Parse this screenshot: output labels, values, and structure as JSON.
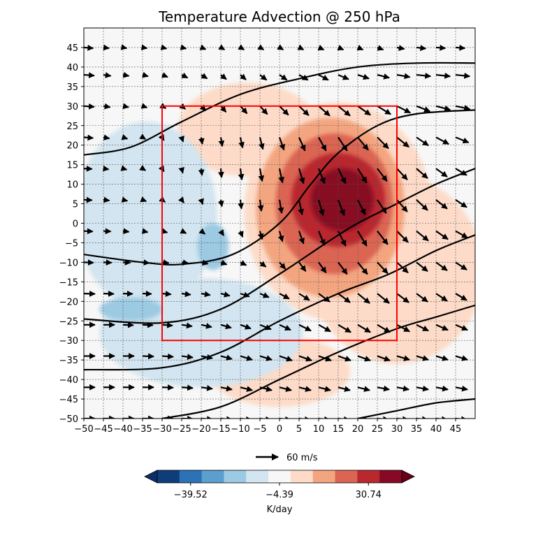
{
  "chart_data": {
    "type": "heatmap",
    "title": "Temperature Advection @ 250 hPa",
    "xlabel": "",
    "ylabel": "",
    "xlim": [
      -50,
      50
    ],
    "ylim": [
      -50,
      50
    ],
    "x_ticks": [
      -50,
      -45,
      -40,
      -35,
      -30,
      -25,
      -20,
      -15,
      -10,
      -5,
      0,
      5,
      10,
      15,
      20,
      25,
      30,
      35,
      40,
      45
    ],
    "y_ticks": [
      -50,
      -45,
      -40,
      -35,
      -30,
      -25,
      -20,
      -15,
      -10,
      -5,
      0,
      5,
      10,
      15,
      20,
      25,
      30,
      35,
      40,
      45
    ],
    "grid": true,
    "colorbar": {
      "label": "K/day",
      "tick_values": [
        "-39.52",
        "-4.39",
        "30.74"
      ],
      "extend": "both",
      "colors": [
        "#0e3d7a",
        "#2c72b6",
        "#5a9fcd",
        "#9ccae3",
        "#d2e5f0",
        "#f7f7f7",
        "#fddbc8",
        "#f3a580",
        "#db6553",
        "#b9282f",
        "#860a23"
      ]
    },
    "highlight_box": {
      "x": [
        -30,
        30
      ],
      "y": [
        -30,
        30
      ],
      "color": "#ff0000"
    },
    "vector_key": {
      "label": "60 m/s",
      "value": 60
    },
    "advection_blobs": [
      {
        "x": 15,
        "y": 3,
        "rx": 24,
        "ry": 28,
        "level": 1
      },
      {
        "x": -8,
        "y": 24,
        "rx": 18,
        "ry": 12,
        "level": 1
      },
      {
        "x": 30,
        "y": -12,
        "rx": 22,
        "ry": 24,
        "level": 1
      },
      {
        "x": 0,
        "y": -38,
        "rx": 18,
        "ry": 9,
        "level": 1
      },
      {
        "x": 13,
        "y": 4,
        "rx": 19,
        "ry": 23,
        "level": 2
      },
      {
        "x": 14,
        "y": 5,
        "rx": 15,
        "ry": 18,
        "level": 3
      },
      {
        "x": 15,
        "y": 6,
        "rx": 12,
        "ry": 12,
        "level": 4
      },
      {
        "x": 16,
        "y": 6,
        "rx": 8,
        "ry": 8,
        "level": 5
      },
      {
        "x": -34,
        "y": 2,
        "rx": 18,
        "ry": 24,
        "level": -1
      },
      {
        "x": -20,
        "y": -28,
        "rx": 26,
        "ry": 14,
        "level": -1
      },
      {
        "x": -38,
        "y": -22,
        "rx": 8,
        "ry": 3,
        "level": -2
      },
      {
        "x": -17,
        "y": -6,
        "rx": 4,
        "ry": 6,
        "level": -2
      }
    ],
    "contours": [
      [
        [
          -50,
          17.5
        ],
        [
          -38,
          19.5
        ],
        [
          -25,
          26
        ],
        [
          -10,
          33
        ],
        [
          5,
          37
        ],
        [
          20,
          40
        ],
        [
          35,
          41
        ],
        [
          50,
          41
        ]
      ],
      [
        [
          -50,
          -8
        ],
        [
          -35,
          -10
        ],
        [
          -25,
          -10.5
        ],
        [
          -12,
          -8
        ],
        [
          0,
          0
        ],
        [
          8,
          10
        ],
        [
          15,
          18
        ],
        [
          25,
          25
        ],
        [
          35,
          28
        ],
        [
          50,
          29
        ]
      ],
      [
        [
          -50,
          -24.5
        ],
        [
          -30,
          -25.5
        ],
        [
          -15,
          -22
        ],
        [
          0,
          -13
        ],
        [
          12,
          -5
        ],
        [
          20,
          0
        ],
        [
          30,
          5
        ],
        [
          40,
          10
        ],
        [
          50,
          14
        ]
      ],
      [
        [
          -50,
          -37.5
        ],
        [
          -30,
          -37
        ],
        [
          -15,
          -33
        ],
        [
          0,
          -25
        ],
        [
          15,
          -18
        ],
        [
          28,
          -13
        ],
        [
          40,
          -7
        ],
        [
          50,
          -3
        ]
      ],
      [
        [
          -30,
          -50
        ],
        [
          -15,
          -47
        ],
        [
          0,
          -40
        ],
        [
          15,
          -33
        ],
        [
          30,
          -27
        ],
        [
          40,
          -24
        ],
        [
          50,
          -21
        ]
      ],
      [
        [
          20,
          -50
        ],
        [
          30,
          -48
        ],
        [
          40,
          -46
        ],
        [
          50,
          -45
        ]
      ]
    ],
    "wind_rows": [
      {
        "y": 45,
        "u": [
          25,
          15,
          10,
          12,
          12,
          12,
          12,
          10,
          10,
          10,
          10,
          12,
          14,
          14,
          14,
          16,
          20,
          25,
          25,
          25
        ],
        "v": [
          -2,
          -2,
          -2,
          -2,
          -3,
          -3,
          -5,
          -6,
          -6,
          -6,
          -6,
          -6,
          -6,
          -6,
          -6,
          -6,
          -4,
          -3,
          -2,
          -2
        ]
      },
      {
        "y": 38,
        "u": [
          28,
          20,
          16,
          15,
          15,
          16,
          16,
          15,
          15,
          18,
          20,
          24,
          26,
          28,
          30,
          32,
          35,
          38,
          38,
          38
        ],
        "v": [
          -2,
          -3,
          -3,
          -4,
          -6,
          -8,
          -10,
          -12,
          -13,
          -14,
          -14,
          -14,
          -14,
          -12,
          -10,
          -8,
          -6,
          -4,
          -4,
          -4
        ]
      },
      {
        "y": 30,
        "u": [
          28,
          18,
          15,
          12,
          10,
          10,
          12,
          14,
          18,
          20,
          24,
          26,
          30,
          32,
          34,
          36,
          36,
          36,
          38,
          38
        ],
        "v": [
          -2,
          -3,
          -3,
          -4,
          -6,
          -8,
          -12,
          -16,
          -20,
          -22,
          -24,
          -25,
          -26,
          -26,
          -24,
          -22,
          -18,
          -14,
          -10,
          -8
        ]
      },
      {
        "y": 22,
        "u": [
          25,
          16,
          12,
          8,
          5,
          4,
          3,
          4,
          6,
          8,
          12,
          16,
          20,
          24,
          28,
          30,
          32,
          32,
          34,
          35
        ],
        "v": [
          -2,
          -3,
          -4,
          -5,
          -8,
          -12,
          -18,
          -24,
          -28,
          -32,
          -34,
          -36,
          -36,
          -36,
          -34,
          -30,
          -26,
          -22,
          -18,
          -14
        ]
      },
      {
        "y": 14,
        "u": [
          22,
          14,
          10,
          8,
          5,
          3,
          2,
          2,
          4,
          6,
          8,
          12,
          16,
          20,
          24,
          26,
          28,
          30,
          30,
          30
        ],
        "v": [
          -1,
          -2,
          -3,
          -5,
          -8,
          -12,
          -18,
          -24,
          -30,
          -34,
          -38,
          -40,
          -40,
          -40,
          -38,
          -34,
          -30,
          -26,
          -22,
          -18
        ]
      },
      {
        "y": 6,
        "u": [
          22,
          16,
          12,
          10,
          8,
          6,
          4,
          3,
          3,
          4,
          6,
          8,
          12,
          16,
          20,
          24,
          28,
          30,
          30,
          30
        ],
        "v": [
          -1,
          -2,
          -3,
          -4,
          -6,
          -8,
          -12,
          -18,
          -24,
          -30,
          -36,
          -40,
          -42,
          -42,
          -40,
          -36,
          -32,
          -28,
          -24,
          -20
        ]
      },
      {
        "y": -2,
        "u": [
          24,
          20,
          16,
          14,
          14,
          12,
          10,
          8,
          6,
          6,
          8,
          12,
          16,
          20,
          24,
          28,
          30,
          32,
          32,
          32
        ],
        "v": [
          -1,
          -1,
          -2,
          -3,
          -4,
          -6,
          -8,
          -12,
          -16,
          -22,
          -28,
          -34,
          -38,
          -40,
          -40,
          -36,
          -30,
          -26,
          -22,
          -18
        ]
      },
      {
        "y": -10,
        "u": [
          26,
          22,
          20,
          18,
          18,
          18,
          18,
          16,
          16,
          16,
          16,
          18,
          20,
          24,
          26,
          28,
          30,
          30,
          30,
          30
        ],
        "v": [
          -1,
          -1,
          -1,
          -2,
          -2,
          -3,
          -4,
          -6,
          -8,
          -12,
          -18,
          -24,
          -28,
          -32,
          -32,
          -30,
          -28,
          -24,
          -22,
          -20
        ]
      },
      {
        "y": -18,
        "u": [
          30,
          28,
          26,
          24,
          24,
          24,
          24,
          24,
          24,
          24,
          26,
          28,
          30,
          32,
          32,
          32,
          32,
          30,
          30,
          30
        ],
        "v": [
          -1,
          -1,
          -1,
          -1,
          -2,
          -3,
          -4,
          -6,
          -8,
          -10,
          -14,
          -18,
          -22,
          -24,
          -26,
          -26,
          -24,
          -22,
          -20,
          -18
        ]
      },
      {
        "y": -26,
        "u": [
          30,
          30,
          28,
          28,
          28,
          28,
          28,
          28,
          28,
          30,
          30,
          32,
          32,
          34,
          34,
          34,
          34,
          32,
          32,
          32
        ],
        "v": [
          0,
          0,
          -1,
          -1,
          -2,
          -4,
          -6,
          -8,
          -10,
          -12,
          -14,
          -16,
          -18,
          -20,
          -20,
          -20,
          -18,
          -16,
          -14,
          -14
        ]
      },
      {
        "y": -34,
        "u": [
          30,
          30,
          30,
          30,
          30,
          30,
          30,
          30,
          32,
          32,
          34,
          34,
          34,
          34,
          34,
          34,
          34,
          32,
          32,
          32
        ],
        "v": [
          0,
          0,
          0,
          -1,
          -2,
          -4,
          -6,
          -8,
          -10,
          -10,
          -12,
          -12,
          -12,
          -12,
          -12,
          -12,
          -10,
          -10,
          -10,
          -10
        ]
      },
      {
        "y": -42,
        "u": [
          30,
          30,
          30,
          30,
          30,
          30,
          30,
          30,
          32,
          32,
          32,
          32,
          32,
          32,
          32,
          32,
          32,
          32,
          32,
          32
        ],
        "v": [
          0,
          0,
          0,
          0,
          -1,
          -2,
          -4,
          -6,
          -8,
          -8,
          -8,
          -8,
          -8,
          -8,
          -8,
          -6,
          -6,
          -6,
          -6,
          -6
        ]
      },
      {
        "y": -50,
        "u": [
          30,
          30,
          30,
          30,
          30,
          30,
          30,
          30,
          30,
          30,
          30,
          30,
          30,
          30,
          30,
          30,
          30,
          30,
          30,
          30
        ],
        "v": [
          0,
          0,
          0,
          0,
          0,
          -1,
          -2,
          -3,
          -4,
          -4,
          -4,
          -4,
          -4,
          -4,
          -4,
          -3,
          -3,
          -3,
          -3,
          -3
        ]
      }
    ]
  }
}
